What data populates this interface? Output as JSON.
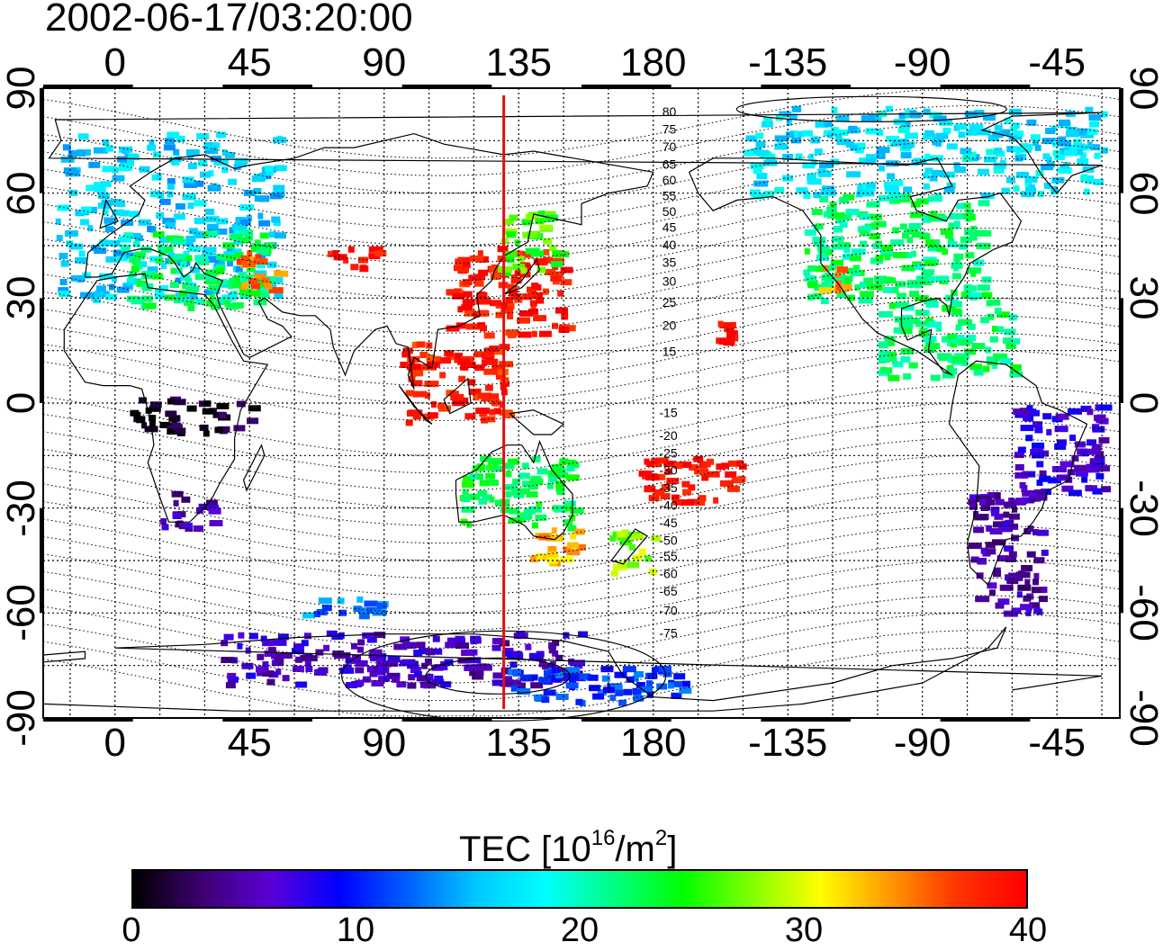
{
  "timestamp": "2002-06-17/03:20:00",
  "map": {
    "type": "global TEC map with magnetic latitude contours",
    "projection": "equirectangular",
    "lon_range": [
      -24,
      336
    ],
    "lat_range": [
      -90,
      90
    ],
    "grid": true,
    "lon_ticks_top": [
      "0",
      "45",
      "90",
      "135",
      "180",
      "-135",
      "-90",
      "-45"
    ],
    "lon_ticks_bottom": [
      "0",
      "45",
      "90",
      "135",
      "180",
      "-135",
      "-90",
      "-45"
    ],
    "lon_tick_values": [
      0,
      45,
      90,
      135,
      180,
      225,
      270,
      315
    ],
    "lat_ticks_left": [
      "90",
      "60",
      "30",
      "0",
      "-30",
      "-60",
      "-90"
    ],
    "lat_ticks_right": [
      "90",
      "60",
      "30",
      "0",
      "-30",
      "-60",
      "-90"
    ],
    "lat_tick_values": [
      90,
      60,
      30,
      0,
      -30,
      -60,
      -90
    ],
    "noon_meridian_lon": 130,
    "noon_meridian_color": "#e01010",
    "contour_labels": [
      {
        "text": "80",
        "lon": 183,
        "lat": 82
      },
      {
        "text": "75",
        "lon": 183,
        "lat": 77
      },
      {
        "text": "70",
        "lon": 183,
        "lat": 72
      },
      {
        "text": "65",
        "lon": 183,
        "lat": 67
      },
      {
        "text": "60",
        "lon": 183,
        "lat": 62.5
      },
      {
        "text": "55",
        "lon": 183,
        "lat": 58
      },
      {
        "text": "50",
        "lon": 183,
        "lat": 53.5
      },
      {
        "text": "45",
        "lon": 183,
        "lat": 49
      },
      {
        "text": "40",
        "lon": 183,
        "lat": 44
      },
      {
        "text": "35",
        "lon": 183,
        "lat": 39
      },
      {
        "text": "30",
        "lon": 183,
        "lat": 33.5
      },
      {
        "text": "25",
        "lon": 183,
        "lat": 27.5
      },
      {
        "text": "20",
        "lon": 183,
        "lat": 21
      },
      {
        "text": "15",
        "lon": 183,
        "lat": 13.5
      },
      {
        "text": "-15",
        "lon": 182,
        "lat": -4
      },
      {
        "text": "-20",
        "lon": 182,
        "lat": -10.5
      },
      {
        "text": "-25",
        "lon": 182,
        "lat": -15.5
      },
      {
        "text": "-30",
        "lon": 182,
        "lat": -20.5
      },
      {
        "text": "-35",
        "lon": 182,
        "lat": -25.5
      },
      {
        "text": "-40",
        "lon": 182,
        "lat": -30.5
      },
      {
        "text": "-45",
        "lon": 182,
        "lat": -35.5
      },
      {
        "text": "-50",
        "lon": 182,
        "lat": -40.5
      },
      {
        "text": "-55",
        "lon": 182,
        "lat": -45
      },
      {
        "text": "-60",
        "lon": 182,
        "lat": -50
      },
      {
        "text": "-65",
        "lon": 182,
        "lat": -55
      },
      {
        "text": "-70",
        "lon": 182,
        "lat": -60.5
      },
      {
        "text": "-75",
        "lon": 182,
        "lat": -67
      }
    ],
    "tec_regions": [
      {
        "name": "europe",
        "lon": [
          -20,
          55
        ],
        "lat": [
          30,
          78
        ],
        "tec": 16
      },
      {
        "name": "europe-south",
        "lon": [
          0,
          50
        ],
        "lat": [
          28,
          50
        ],
        "tec": 22
      },
      {
        "name": "middle-east",
        "lon": [
          40,
          55
        ],
        "lat": [
          33,
          44
        ],
        "tec": 35
      },
      {
        "name": "central-asia",
        "lon": [
          70,
          88
        ],
        "lat": [
          39,
          45
        ],
        "tec": 39
      },
      {
        "name": "east-asia",
        "lon": [
          110,
          150
        ],
        "lat": [
          20,
          45
        ],
        "tec": 39
      },
      {
        "name": "japan-north",
        "lon": [
          128,
          148
        ],
        "lat": [
          38,
          55
        ],
        "tec": 26
      },
      {
        "name": "southeast-asia",
        "lon": [
          95,
          130
        ],
        "lat": [
          -5,
          18
        ],
        "tec": 38
      },
      {
        "name": "australia",
        "lon": [
          115,
          153
        ],
        "lat": [
          -35,
          -15
        ],
        "tec": 23
      },
      {
        "name": "australia-se",
        "lon": [
          135,
          155
        ],
        "lat": [
          -45,
          -35
        ],
        "tec": 33
      },
      {
        "name": "new-zealand",
        "lon": [
          165,
          180
        ],
        "lat": [
          -48,
          -36
        ],
        "tec": 28
      },
      {
        "name": "pacific-south",
        "lon": [
          175,
          210
        ],
        "lat": [
          -28,
          -15
        ],
        "tec": 39
      },
      {
        "name": "hawaii",
        "lon": [
          200,
          206
        ],
        "lat": [
          18,
          24
        ],
        "tec": 40
      },
      {
        "name": "north-america",
        "lon": [
          230,
          290
        ],
        "lat": [
          30,
          60
        ],
        "tec": 22
      },
      {
        "name": "canada-arctic",
        "lon": [
          210,
          330
        ],
        "lat": [
          60,
          85
        ],
        "tec": 17
      },
      {
        "name": "california",
        "lon": [
          235,
          245
        ],
        "lat": [
          32,
          40
        ],
        "tec": 34
      },
      {
        "name": "central-america",
        "lon": [
          255,
          300
        ],
        "lat": [
          8,
          30
        ],
        "tec": 22
      },
      {
        "name": "south-america-east",
        "lon": [
          300,
          330
        ],
        "lat": [
          -25,
          0
        ],
        "tec": 7
      },
      {
        "name": "south-america-south",
        "lon": [
          285,
          310
        ],
        "lat": [
          -60,
          -25
        ],
        "tec": 5
      },
      {
        "name": "africa-equatorial",
        "lon": [
          5,
          45
        ],
        "lat": [
          -8,
          2
        ],
        "tec": 1
      },
      {
        "name": "south-africa",
        "lon": [
          15,
          33
        ],
        "lat": [
          -36,
          -25
        ],
        "tec": 5
      },
      {
        "name": "antarctica-coast",
        "lon": [
          35,
          155
        ],
        "lat": [
          -80,
          -65
        ],
        "tec": 6
      },
      {
        "name": "antarctica-east",
        "lon": [
          130,
          190
        ],
        "lat": [
          -85,
          -75
        ],
        "tec": 11
      },
      {
        "name": "southern-ocean",
        "lon": [
          60,
          90
        ],
        "lat": [
          -60,
          -55
        ],
        "tec": 13
      }
    ]
  },
  "colorbar": {
    "title_prefix": "TEC  [10",
    "title_sup1": "16",
    "title_mid": "/m",
    "title_sup2": "2",
    "title_suffix": "]",
    "min": 0,
    "max": 40,
    "tick_labels": [
      "0",
      "10",
      "20",
      "30",
      "40"
    ],
    "tick_values": [
      0,
      10,
      20,
      30,
      40
    ],
    "colors": [
      "#000000",
      "#3d0070",
      "#5a00d8",
      "#0000ff",
      "#0060ff",
      "#00c8ff",
      "#00ffff",
      "#00ff80",
      "#00ff00",
      "#80ff00",
      "#ffff00",
      "#ff9900",
      "#ff3300",
      "#ff0000"
    ]
  }
}
